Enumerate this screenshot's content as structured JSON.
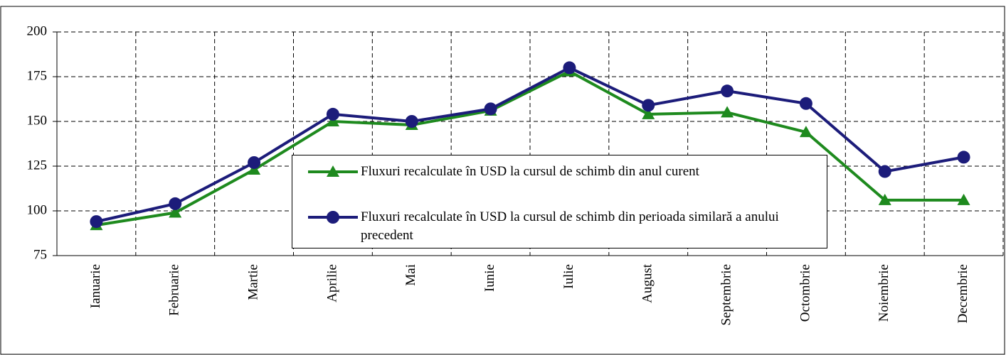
{
  "chart_data": {
    "type": "line",
    "categories": [
      "Ianuarie",
      "Februarie",
      "Martie",
      "Aprilie",
      "Mai",
      "Iunie",
      "Iulie",
      "August",
      "Septembrie",
      "Octombrie",
      "Noiembrie",
      "Decembrie"
    ],
    "series": [
      {
        "name": "Fluxuri recalculate în USD la cursul de schimb din anul curent",
        "color": "#1e8a1e",
        "marker": "triangle",
        "values": [
          92,
          99,
          123,
          150,
          148,
          156,
          178,
          154,
          155,
          144,
          106,
          106
        ]
      },
      {
        "name": "Fluxuri recalculate în USD la cursul de schimb din perioada similară a anului precedent",
        "color": "#1c1c7a",
        "marker": "circle",
        "values": [
          94,
          104,
          127,
          154,
          150,
          157,
          180,
          159,
          167,
          160,
          122,
          130
        ]
      }
    ],
    "ylim": [
      75,
      200
    ],
    "yticks": [
      75,
      100,
      125,
      150,
      175,
      200
    ],
    "grid": true
  }
}
